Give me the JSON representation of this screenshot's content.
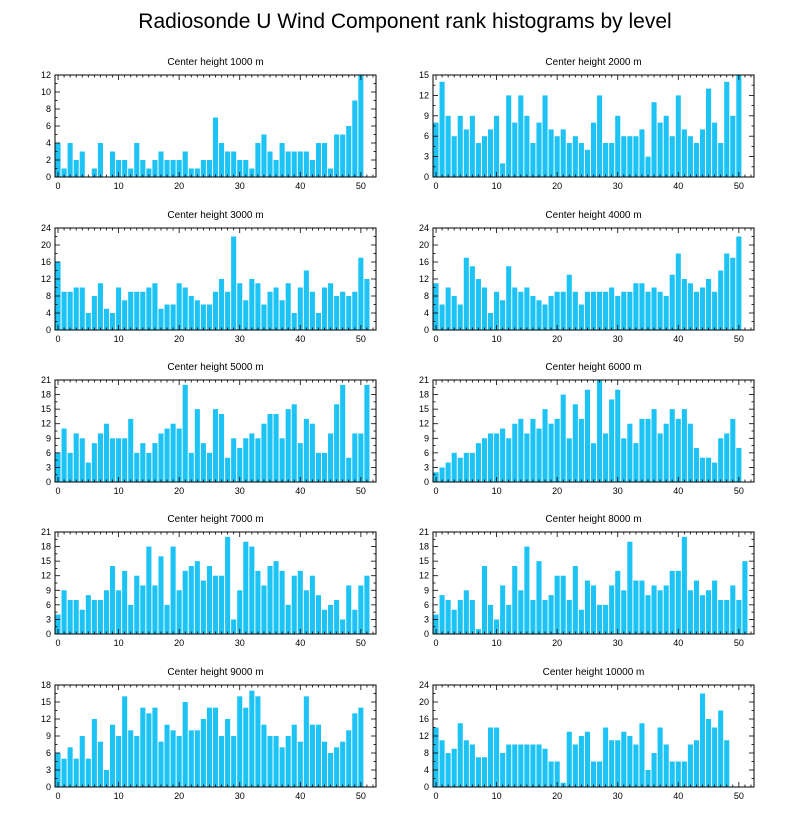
{
  "title": "Radiosonde U Wind Component rank histograms by level",
  "style": {
    "bar_color": "#1ec3f5",
    "axis_color": "#000000"
  },
  "chart_data": [
    {
      "type": "bar",
      "title": "Center height 1000 m",
      "xticks": [
        0,
        10,
        20,
        30,
        40,
        50
      ],
      "yticks": [
        0,
        2,
        4,
        6,
        8,
        10,
        12
      ],
      "ylim": [
        0,
        12
      ],
      "values": [
        4,
        1,
        4,
        2,
        3,
        0,
        1,
        4,
        0,
        3,
        2,
        2,
        1,
        4,
        2,
        1,
        2,
        3,
        2,
        2,
        2,
        3,
        1,
        1,
        2,
        2,
        7,
        4,
        3,
        3,
        2,
        2,
        1,
        4,
        5,
        3,
        2,
        4,
        3,
        3,
        3,
        3,
        2,
        4,
        4,
        1,
        5,
        5,
        6,
        9,
        12
      ]
    },
    {
      "type": "bar",
      "title": "Center height 2000 m",
      "xticks": [
        0,
        10,
        20,
        30,
        40,
        50
      ],
      "yticks": [
        0,
        3,
        6,
        9,
        12,
        15
      ],
      "ylim": [
        0,
        15
      ],
      "values": [
        8,
        14,
        9,
        6,
        9,
        7,
        9,
        5,
        6,
        7,
        9,
        2,
        12,
        8,
        12,
        9,
        5,
        8,
        12,
        7,
        6,
        7,
        5,
        6,
        5,
        4,
        8,
        12,
        5,
        5,
        9,
        6,
        6,
        6,
        7,
        3,
        11,
        8,
        9,
        6,
        12,
        7,
        6,
        5,
        7,
        13,
        8,
        5,
        14,
        9,
        15
      ]
    },
    {
      "type": "bar",
      "title": "Center height 3000 m",
      "xticks": [
        0,
        10,
        20,
        30,
        40,
        50
      ],
      "yticks": [
        0,
        4,
        8,
        12,
        16,
        20,
        24
      ],
      "ylim": [
        0,
        24
      ],
      "values": [
        16,
        9,
        9,
        10,
        10,
        4,
        8,
        11,
        5,
        4,
        10,
        7,
        9,
        9,
        9,
        10,
        11,
        5,
        6,
        6,
        11,
        10,
        8,
        7,
        6,
        6,
        9,
        12,
        9,
        22,
        11,
        7,
        12,
        11,
        6,
        9,
        10,
        7,
        11,
        4,
        10,
        14,
        9,
        4,
        10,
        11,
        8,
        9,
        8,
        9,
        17,
        12
      ]
    },
    {
      "type": "bar",
      "title": "Center height 4000 m",
      "xticks": [
        0,
        10,
        20,
        30,
        40,
        50
      ],
      "yticks": [
        0,
        4,
        8,
        12,
        16,
        20,
        24
      ],
      "ylim": [
        0,
        24
      ],
      "values": [
        11,
        6,
        10,
        8,
        6,
        17,
        15,
        12,
        10,
        4,
        9,
        7,
        15,
        10,
        9,
        10,
        8,
        7,
        6,
        8,
        9,
        9,
        13,
        9,
        6,
        9,
        9,
        9,
        9,
        10,
        8,
        9,
        9,
        11,
        11,
        9,
        10,
        9,
        8,
        13,
        18,
        12,
        11,
        9,
        10,
        12,
        9,
        14,
        18,
        17,
        22
      ]
    },
    {
      "type": "bar",
      "title": "Center height 5000 m",
      "xticks": [
        0,
        10,
        20,
        30,
        40,
        50
      ],
      "yticks": [
        0,
        3,
        6,
        9,
        12,
        15,
        18,
        21
      ],
      "ylim": [
        0,
        21
      ],
      "values": [
        6,
        11,
        6,
        10,
        9,
        4,
        8,
        10,
        12,
        9,
        9,
        9,
        13,
        6,
        8,
        6,
        8,
        10,
        11,
        12,
        11,
        20,
        6,
        15,
        8,
        6,
        15,
        14,
        5,
        9,
        7,
        9,
        10,
        9,
        12,
        14,
        14,
        9,
        15,
        16,
        8,
        13,
        12,
        6,
        6,
        10,
        16,
        20,
        5,
        10,
        10,
        20
      ]
    },
    {
      "type": "bar",
      "title": "Center height 6000 m",
      "xticks": [
        0,
        10,
        20,
        30,
        40,
        50
      ],
      "yticks": [
        0,
        3,
        6,
        9,
        12,
        15,
        18,
        21
      ],
      "ylim": [
        0,
        21
      ],
      "values": [
        2,
        3,
        4,
        6,
        5,
        6,
        6,
        8,
        9,
        10,
        10,
        11,
        9,
        12,
        13,
        10,
        13,
        11,
        15,
        12,
        13,
        18,
        9,
        16,
        13,
        19,
        8,
        21,
        10,
        17,
        19,
        9,
        12,
        8,
        13,
        13,
        15,
        10,
        12,
        15,
        13,
        15,
        12,
        7,
        5,
        5,
        4,
        9,
        10,
        13,
        7
      ]
    },
    {
      "type": "bar",
      "title": "Center height 7000 m",
      "xticks": [
        0,
        10,
        20,
        30,
        40,
        50
      ],
      "yticks": [
        0,
        3,
        6,
        9,
        12,
        15,
        18,
        21
      ],
      "ylim": [
        0,
        21
      ],
      "values": [
        4,
        9,
        7,
        7,
        5,
        8,
        7,
        7,
        9,
        14,
        9,
        13,
        6,
        12,
        10,
        18,
        10,
        16,
        6,
        18,
        9,
        13,
        14,
        15,
        11,
        14,
        12,
        12,
        20,
        3,
        9,
        19,
        18,
        13,
        10,
        14,
        15,
        13,
        6,
        12,
        13,
        9,
        12,
        8,
        5,
        6,
        7,
        3,
        10,
        5,
        10,
        12
      ]
    },
    {
      "type": "bar",
      "title": "Center height 8000 m",
      "xticks": [
        0,
        10,
        20,
        30,
        40,
        50
      ],
      "yticks": [
        0,
        3,
        6,
        9,
        12,
        15,
        18,
        21
      ],
      "ylim": [
        0,
        21
      ],
      "values": [
        4,
        8,
        7,
        5,
        7,
        9,
        7,
        1,
        14,
        6,
        3,
        10,
        6,
        14,
        9,
        18,
        7,
        15,
        7,
        8,
        12,
        12,
        7,
        14,
        5,
        11,
        10,
        6,
        6,
        10,
        13,
        9,
        19,
        11,
        11,
        8,
        10,
        9,
        10,
        13,
        13,
        20,
        9,
        11,
        8,
        9,
        11,
        7,
        7,
        10,
        7,
        15
      ]
    },
    {
      "type": "bar",
      "title": "Center height 9000 m",
      "xticks": [
        0,
        10,
        20,
        30,
        40,
        50
      ],
      "yticks": [
        0,
        3,
        6,
        9,
        12,
        15,
        18
      ],
      "ylim": [
        0,
        18
      ],
      "values": [
        6,
        5,
        7,
        5,
        9,
        5,
        12,
        8,
        3,
        11,
        9,
        16,
        10,
        9,
        14,
        13,
        14,
        8,
        11,
        10,
        9,
        15,
        10,
        10,
        12,
        14,
        14,
        9,
        12,
        9,
        16,
        14,
        17,
        16,
        11,
        9,
        9,
        7,
        9,
        11,
        8,
        16,
        11,
        11,
        8,
        6,
        7,
        8,
        10,
        13,
        14
      ]
    },
    {
      "type": "bar",
      "title": "Center height 10000 m",
      "xticks": [
        0,
        10,
        20,
        30,
        40,
        50
      ],
      "yticks": [
        0,
        4,
        8,
        12,
        16,
        20,
        24
      ],
      "ylim": [
        0,
        24
      ],
      "values": [
        14,
        11,
        8,
        9,
        15,
        11,
        10,
        7,
        7,
        14,
        14,
        8,
        10,
        10,
        10,
        10,
        10,
        10,
        9,
        6,
        6,
        1,
        13,
        10,
        12,
        13,
        6,
        6,
        14,
        11,
        11,
        13,
        12,
        10,
        15,
        4,
        8,
        14,
        10,
        6,
        6,
        6,
        10,
        11,
        22,
        16,
        14,
        18,
        11
      ]
    }
  ]
}
